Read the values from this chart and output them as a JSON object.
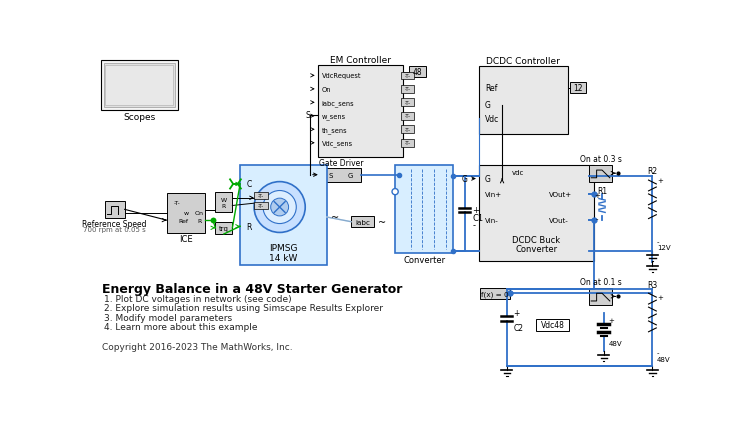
{
  "title": "Energy Balance in a 48V Starter Generator",
  "bullets": [
    "1. Plot DC voltages in network (see code)",
    "2. Explore simulation results using Simscape Results Explorer",
    "3. Modify model parameters",
    "4. Learn more about this example"
  ],
  "copyright": "Copyright 2016-2023 The MathWorks, Inc.",
  "bg_color": "#ffffff",
  "gray_fill": "#d0d0d0",
  "light_gray": "#e8e8e8",
  "block_edge": "#000000",
  "blue": "#3070c8",
  "green": "#00aa00",
  "black": "#000000",
  "light_blue_fill": "#d8eeff",
  "white": "#ffffff",
  "scope_inner": "#e8e8e8"
}
